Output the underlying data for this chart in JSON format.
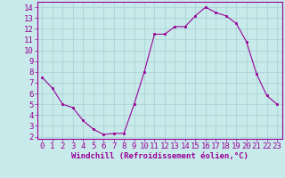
{
  "x": [
    0,
    1,
    2,
    3,
    4,
    5,
    6,
    7,
    8,
    9,
    10,
    11,
    12,
    13,
    14,
    15,
    16,
    17,
    18,
    19,
    20,
    21,
    22,
    23
  ],
  "y": [
    7.5,
    6.5,
    5.0,
    4.7,
    3.5,
    2.7,
    2.2,
    2.3,
    2.3,
    5.0,
    8.0,
    11.5,
    11.5,
    12.2,
    12.2,
    13.2,
    14.0,
    13.5,
    13.2,
    12.5,
    10.8,
    7.8,
    5.8,
    5.0
  ],
  "line_color": "#990099",
  "marker_color": "#990099",
  "bg_color": "#c8eaea",
  "grid_color": "#b0d8d8",
  "axis_color": "#990099",
  "xlabel": "Windchill (Refroidissement éolien,°C)",
  "xlim": [
    -0.5,
    23.5
  ],
  "ylim": [
    1.8,
    14.5
  ],
  "yticks": [
    2,
    3,
    4,
    5,
    6,
    7,
    8,
    9,
    10,
    11,
    12,
    13,
    14
  ],
  "xticks": [
    0,
    1,
    2,
    3,
    4,
    5,
    6,
    7,
    8,
    9,
    10,
    11,
    12,
    13,
    14,
    15,
    16,
    17,
    18,
    19,
    20,
    21,
    22,
    23
  ],
  "tick_fontsize": 6.5,
  "xlabel_fontsize": 6.5
}
